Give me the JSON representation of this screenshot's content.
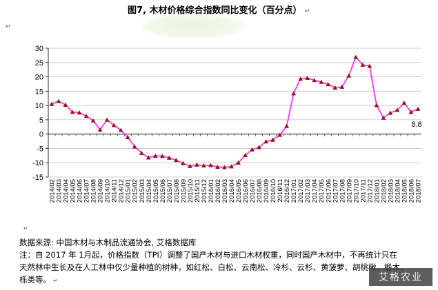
{
  "title": "图7, 木材价格综合指数同比变化（百分点）",
  "title_mark": "↵",
  "left_mark": "↵",
  "mid_mark": "↵",
  "end_mark": "↵",
  "footer": {
    "source": "数据来源: 中国木材与木制品流通协会, 艾格数据库",
    "note_line1": "注：自 2017 年 1月起，价格指数（TPI）调整了国产木材与进口木材权重，同时国产木材中，不再统计只在",
    "note_line2": "天然林中生长及在人工林中仅少量种植的树种，如红松、白松、云南松、冷杉、云杉、黄菠萝、胡桃楸、椴木、",
    "note_line3": "栎类等。"
  },
  "stamp_text": "艾格农业",
  "colors": {
    "line": "#ff33ff",
    "marker": "#8b1a1a",
    "grid": "#bfbfbf"
  },
  "chart_data": {
    "type": "line",
    "title": "图7, 木材价格综合指数同比变化（百分点）",
    "xlabel": "",
    "ylabel": "",
    "ylim": [
      -15,
      30
    ],
    "yticks": [
      30,
      25,
      20,
      15,
      10,
      5,
      0,
      -5,
      -10,
      -15
    ],
    "grid": true,
    "legend": "none",
    "x": [
      "2014/02",
      "2014/03",
      "2014/04",
      "2014/05",
      "2014/06",
      "2014/07",
      "2014/08",
      "2014/09",
      "2014/10",
      "2014/11",
      "2014/12",
      "2015/01",
      "2015/02",
      "2015/03",
      "2015/04",
      "2015/05",
      "2015/06",
      "2015/07",
      "2015/08",
      "2015/09",
      "2015/10",
      "2015/11",
      "2015/12",
      "2016/01",
      "2016/02",
      "2016/03",
      "2016/04",
      "2016/05",
      "2016/06",
      "2016/07",
      "2016/08",
      "2016/09",
      "2016/10",
      "2016/11",
      "2016/12",
      "2017/01",
      "2017/02",
      "2017/03",
      "2017/04",
      "2017/05",
      "2017/06",
      "2017/07",
      "2017/08",
      "2017/09",
      "2017/10",
      "2017/11",
      "2017/12",
      "2018/01",
      "2018/02",
      "2018/03",
      "2018/04",
      "2018/05",
      "2018/06",
      "2018/07"
    ],
    "series": [
      {
        "values": [
          10.5,
          11.5,
          10.2,
          7.7,
          7.5,
          6.3,
          4.7,
          1.5,
          5.0,
          3.1,
          1.4,
          -1.1,
          -4.4,
          -6.6,
          -8.2,
          -7.6,
          -7.7,
          -8.3,
          -9.1,
          -10.2,
          -11.2,
          -10.7,
          -11.0,
          -10.9,
          -11.5,
          -11.6,
          -11.3,
          -10.0,
          -7.4,
          -5.4,
          -4.6,
          -2.6,
          -2.0,
          -0.3,
          2.8,
          14.2,
          19.3,
          19.6,
          18.8,
          18.2,
          17.4,
          16.2,
          16.5,
          20.4,
          26.9,
          24.2,
          23.8,
          10.1,
          5.7,
          7.4,
          8.4,
          10.9,
          7.7,
          8.8
        ]
      }
    ],
    "annotations": [
      "8.8"
    ]
  }
}
